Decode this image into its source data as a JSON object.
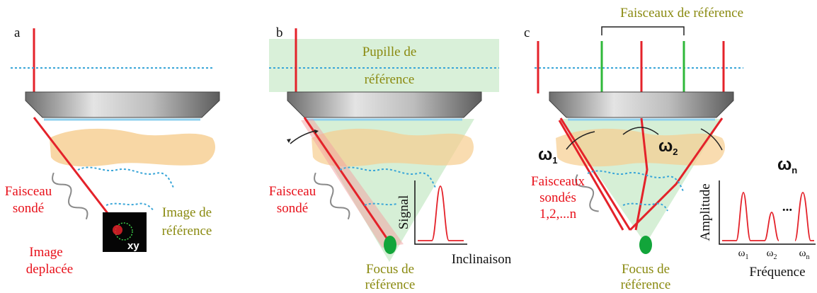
{
  "panels": [
    {
      "label": "a",
      "probe_beam": [
        "Faisceau",
        "sondé"
      ],
      "reference_image": [
        "Image de",
        "référence"
      ],
      "displaced_image": [
        "Image",
        "deplacée"
      ],
      "inset_label": "xy"
    },
    {
      "label": "b",
      "reference_pupil": [
        "Pupille de",
        "référence"
      ],
      "probe_beam": [
        "Faisceau",
        "sondé"
      ],
      "plot": {
        "y_label": "Signal",
        "x_label": "Inclinaison"
      },
      "reference_focus": [
        "Focus de",
        "référence"
      ]
    },
    {
      "label": "c",
      "reference_beams": "Faisceaux de référence",
      "modes": [
        {
          "symbol": "ω",
          "sub": "1"
        },
        {
          "symbol": "ω",
          "sub": "2"
        },
        {
          "symbol": "ω",
          "sub": "n"
        }
      ],
      "probe_beams": [
        "Faisceaux",
        "sondés",
        "1,2,...n"
      ],
      "plot": {
        "y_label": "Amplitude",
        "x_label": "Fréquence",
        "ticks": [
          {
            "symbol": "ω",
            "sub": "1"
          },
          {
            "symbol": "ω",
            "sub": "2"
          },
          {
            "symbol": "ω",
            "sub": "n"
          }
        ],
        "ellipsis": "..."
      },
      "reference_focus": [
        "Focus de",
        "référence"
      ]
    }
  ]
}
